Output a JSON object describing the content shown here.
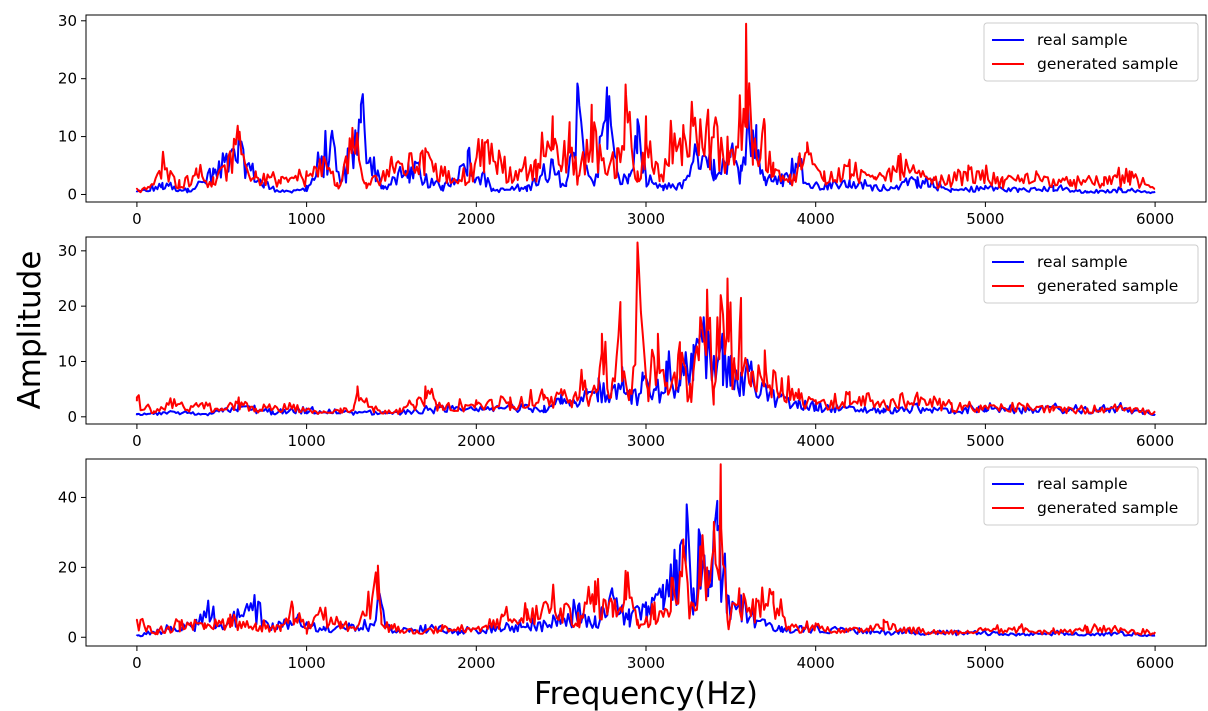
{
  "figure": {
    "xlabel": "Frequency(Hz)",
    "ylabel": "Amplitude"
  },
  "colors": {
    "real": "#0000ff",
    "generated": "#ff0000"
  },
  "chart_data": [
    {
      "type": "line",
      "xlim": [
        -300,
        6300
      ],
      "ylim": [
        -1.3,
        31
      ],
      "x_ticks": [
        0,
        1000,
        2000,
        3000,
        4000,
        5000,
        6000
      ],
      "y_ticks": [
        0,
        10,
        20,
        30
      ],
      "legend_position": "top-right",
      "grid": false,
      "series": [
        {
          "name": "real sample",
          "color": "#0000ff",
          "x": [
            0,
            150,
            300,
            450,
            600,
            750,
            900,
            1000,
            1150,
            1200,
            1320,
            1450,
            1600,
            1800,
            1950,
            2100,
            2300,
            2450,
            2530,
            2600,
            2650,
            2700,
            2770,
            2830,
            2900,
            2950,
            3000,
            3100,
            3200,
            3300,
            3400,
            3500,
            3560,
            3600,
            3650,
            3700,
            3800,
            3900,
            4000,
            4200,
            4400,
            4600,
            4800,
            5000,
            5200,
            5400,
            5600,
            5800,
            6000
          ],
          "values": [
            0.5,
            2,
            1,
            4.5,
            10,
            2,
            0.5,
            1.5,
            11,
            2,
            15.5,
            1.5,
            5.5,
            1.5,
            7.5,
            1,
            1.5,
            6,
            2,
            18.5,
            5,
            2.5,
            18.5,
            4,
            3.5,
            13,
            3,
            1.5,
            2,
            8,
            6,
            7.5,
            5,
            16,
            12,
            3,
            3.5,
            6.5,
            2,
            2.5,
            1.5,
            3,
            1,
            1.5,
            1,
            1.5,
            0.5,
            1,
            0.5
          ]
        },
        {
          "name": "generated sample",
          "color": "#ff0000",
          "x": [
            0,
            80,
            150,
            250,
            350,
            450,
            600,
            700,
            850,
            1000,
            1100,
            1180,
            1270,
            1350,
            1500,
            1700,
            1900,
            2050,
            2200,
            2350,
            2450,
            2500,
            2550,
            2600,
            2680,
            2750,
            2830,
            2880,
            2950,
            3000,
            3080,
            3150,
            3220,
            3270,
            3320,
            3400,
            3480,
            3550,
            3590,
            3630,
            3700,
            3750,
            3850,
            3950,
            4050,
            4200,
            4350,
            4500,
            4700,
            4900,
            5100,
            5300,
            5500,
            5700,
            5850,
            6000
          ],
          "values": [
            1,
            1.5,
            6,
            2.5,
            4.5,
            3,
            9.5,
            4,
            3,
            4,
            6.5,
            2,
            11.5,
            2,
            6.5,
            8,
            2.5,
            9,
            4.5,
            6,
            13.5,
            4,
            12.5,
            3,
            15.5,
            6,
            8,
            19,
            4,
            13.5,
            3,
            11,
            12,
            16,
            13,
            11.5,
            10,
            13.5,
            29.5,
            7,
            12,
            5.5,
            3,
            9,
            4,
            6,
            3,
            7,
            2.5,
            5,
            3,
            4,
            2.5,
            3,
            4,
            1
          ]
        }
      ]
    },
    {
      "type": "line",
      "xlim": [
        -300,
        6300
      ],
      "ylim": [
        -1.3,
        32.5
      ],
      "x_ticks": [
        0,
        1000,
        2000,
        3000,
        4000,
        5000,
        6000
      ],
      "y_ticks": [
        0,
        10,
        20,
        30
      ],
      "legend_position": "top-right",
      "grid": false,
      "series": [
        {
          "name": "real sample",
          "color": "#0000ff",
          "x": [
            0,
            200,
            400,
            600,
            800,
            1000,
            1200,
            1400,
            1600,
            1800,
            2000,
            2200,
            2400,
            2500,
            2580,
            2650,
            2720,
            2800,
            2860,
            2920,
            2980,
            3050,
            3120,
            3200,
            3280,
            3340,
            3400,
            3450,
            3500,
            3560,
            3620,
            3700,
            3800,
            3900,
            4000,
            4200,
            4400,
            4600,
            4800,
            5000,
            5200,
            5400,
            5600,
            5800,
            6000
          ],
          "values": [
            0.5,
            1,
            0.5,
            2.5,
            1,
            1.5,
            1,
            1,
            1,
            2,
            1.5,
            2.5,
            2,
            4,
            2.5,
            5,
            7,
            5,
            9,
            4,
            8,
            5,
            10,
            7,
            13,
            18,
            11,
            15,
            11,
            8,
            10,
            6,
            4,
            3,
            2.5,
            2,
            1.5,
            2,
            1.5,
            2,
            1.5,
            2,
            1.5,
            2,
            0.5
          ]
        },
        {
          "name": "generated sample",
          "color": "#ff0000",
          "x": [
            0,
            100,
            200,
            350,
            500,
            600,
            700,
            900,
            1100,
            1200,
            1280,
            1300,
            1400,
            1550,
            1650,
            1700,
            1800,
            2000,
            2200,
            2400,
            2500,
            2570,
            2620,
            2680,
            2740,
            2800,
            2850,
            2900,
            2950,
            3010,
            3070,
            3130,
            3200,
            3260,
            3320,
            3360,
            3400,
            3440,
            3480,
            3520,
            3560,
            3620,
            3700,
            3800,
            3900,
            4000,
            4200,
            4400,
            4600,
            4800,
            5000,
            5200,
            5400,
            5600,
            5800,
            6000
          ],
          "values": [
            3.5,
            1,
            3,
            2.5,
            1.5,
            3.5,
            1.5,
            2.5,
            1,
            1.5,
            2,
            5.5,
            1.5,
            1.5,
            3,
            5.5,
            2,
            3,
            3.5,
            4,
            5,
            3,
            8.5,
            4,
            15,
            6,
            18,
            3,
            31.5,
            5,
            15,
            4,
            13.5,
            6,
            18,
            23,
            5,
            22,
            25,
            10,
            21.5,
            8,
            12,
            7,
            5,
            3,
            4.5,
            3,
            4,
            2.5,
            2,
            2.5,
            2,
            1.5,
            2,
            1
          ]
        }
      ]
    },
    {
      "type": "line",
      "xlim": [
        -300,
        6300
      ],
      "ylim": [
        -2.5,
        51
      ],
      "x_ticks": [
        0,
        1000,
        2000,
        3000,
        4000,
        5000,
        6000
      ],
      "y_ticks": [
        0,
        20,
        40
      ],
      "legend_position": "top-right",
      "grid": false,
      "series": [
        {
          "name": "real sample",
          "color": "#0000ff",
          "x": [
            0,
            200,
            350,
            420,
            500,
            600,
            690,
            800,
            950,
            1100,
            1250,
            1400,
            1430,
            1500,
            1700,
            1900,
            2100,
            2300,
            2450,
            2600,
            2700,
            2800,
            2900,
            3000,
            3100,
            3180,
            3240,
            3280,
            3320,
            3370,
            3420,
            3480,
            3560,
            3700,
            3800,
            4000,
            4200,
            4400,
            4600,
            4800,
            5000,
            5200,
            5400,
            5600,
            5800,
            6000
          ],
          "values": [
            0.5,
            3,
            5,
            10.5,
            3,
            7,
            10.5,
            4,
            6.5,
            3,
            4,
            4,
            12.5,
            2,
            3.5,
            2,
            3.5,
            4,
            5,
            9,
            6,
            14,
            8,
            10,
            15,
            22,
            38,
            14,
            29,
            19,
            39,
            12,
            12,
            5,
            3,
            3.5,
            2.5,
            2,
            2,
            1.5,
            1.5,
            1,
            1.5,
            1,
            1.5,
            0.5
          ]
        },
        {
          "name": "generated sample",
          "color": "#ff0000",
          "x": [
            0,
            120,
            250,
            400,
            550,
            700,
            850,
            920,
            1000,
            1080,
            1200,
            1300,
            1420,
            1440,
            1500,
            1650,
            1800,
            2000,
            2150,
            2300,
            2450,
            2600,
            2700,
            2800,
            2880,
            2950,
            3050,
            3150,
            3220,
            3270,
            3320,
            3360,
            3400,
            3440,
            3480,
            3550,
            3650,
            3750,
            3850,
            4000,
            4200,
            4400,
            4600,
            4800,
            5000,
            5200,
            5400,
            5600,
            5800,
            6000
          ],
          "values": [
            5,
            2,
            4.5,
            4,
            6.5,
            4,
            3.5,
            8.5,
            2.5,
            8.5,
            4.5,
            3,
            20.5,
            6,
            3.5,
            2,
            3.5,
            2.5,
            6.5,
            8,
            13,
            7,
            16,
            10,
            19,
            5,
            10,
            17,
            28,
            9,
            26,
            20,
            33,
            49.5,
            5,
            14,
            11,
            13,
            3,
            4,
            2.5,
            5,
            2.5,
            2,
            2.5,
            3,
            2,
            3,
            2.5,
            1.5
          ]
        }
      ]
    }
  ]
}
